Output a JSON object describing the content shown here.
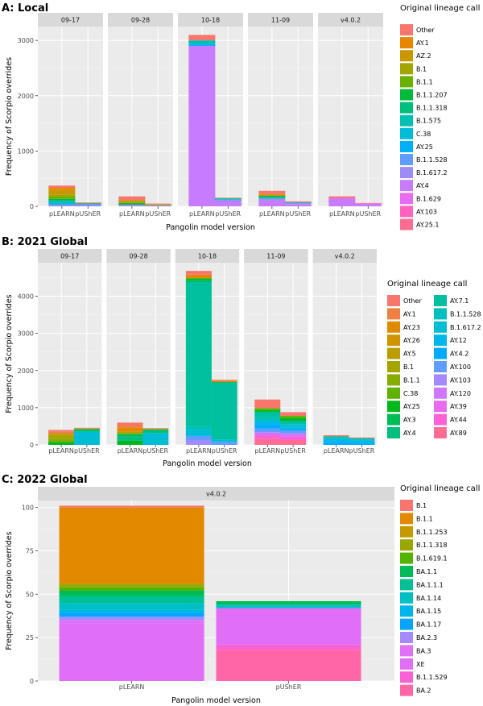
{
  "chart_data": [
    {
      "type": "bar",
      "stacked": true,
      "title": "A: Local",
      "facets": [
        "09-17",
        "09-28",
        "10-18",
        "11-09",
        "v4.0.2"
      ],
      "categories": [
        "pLEARN",
        "pUShER"
      ],
      "xlabel": "Pangolin model version",
      "ylabel": "Frequency of Scorpio overrides",
      "ylim": [
        0,
        3250
      ],
      "yticks": [
        0,
        1000,
        2000,
        3000
      ],
      "legend_title": "Original lineage call",
      "legend": [
        {
          "name": "Other",
          "color": "#F8766D"
        },
        {
          "name": "AY.1",
          "color": "#E58700"
        },
        {
          "name": "AZ.2",
          "color": "#C99800"
        },
        {
          "name": "B.1",
          "color": "#A3A500"
        },
        {
          "name": "B.1.1",
          "color": "#6BB100"
        },
        {
          "name": "B.1.1.207",
          "color": "#00BA38"
        },
        {
          "name": "B.1.1.318",
          "color": "#00BF7D"
        },
        {
          "name": "B.1.575",
          "color": "#00C0AF"
        },
        {
          "name": "C.38",
          "color": "#00BCD8"
        },
        {
          "name": "AY.25",
          "color": "#00B0F6"
        },
        {
          "name": "B.1.1.528",
          "color": "#619CFF"
        },
        {
          "name": "B.1.617.2",
          "color": "#9E8CF6"
        },
        {
          "name": "AY.4",
          "color": "#C77CFF"
        },
        {
          "name": "B.1.629",
          "color": "#E76BF3"
        },
        {
          "name": "AY.103",
          "color": "#FF62BC"
        },
        {
          "name": "AY.25.1",
          "color": "#FF6C91"
        }
      ],
      "bars": [
        {
          "facet": "09-17",
          "category": "pLEARN",
          "segments": [
            [
              "B.1.617.2",
              30
            ],
            [
              "C.38",
              60
            ],
            [
              "B.1.1.318",
              20
            ],
            [
              "B.1.1.207",
              25
            ],
            [
              "B.1.1",
              40
            ],
            [
              "B.1",
              40
            ],
            [
              "AZ.2",
              80
            ],
            [
              "AY.1",
              40
            ],
            [
              "Other",
              40
            ]
          ]
        },
        {
          "facet": "09-17",
          "category": "pUShER",
          "segments": [
            [
              "B.1.617.2",
              35
            ],
            [
              "AY.25",
              15
            ],
            [
              "B.1.1",
              10
            ],
            [
              "Other",
              10
            ]
          ]
        },
        {
          "facet": "09-28",
          "category": "pLEARN",
          "segments": [
            [
              "B.1.617.2",
              30
            ],
            [
              "B.1.1.207",
              30
            ],
            [
              "B.1",
              20
            ],
            [
              "AZ.2",
              30
            ],
            [
              "Other",
              70
            ]
          ]
        },
        {
          "facet": "09-28",
          "category": "pUShER",
          "segments": [
            [
              "B.1.617.2",
              20
            ],
            [
              "B.1.1",
              10
            ],
            [
              "AY.1",
              10
            ],
            [
              "Other",
              10
            ]
          ]
        },
        {
          "facet": "10-18",
          "category": "pLEARN",
          "segments": [
            [
              "AY.4",
              2900
            ],
            [
              "AY.25",
              40
            ],
            [
              "B.1.575",
              60
            ],
            [
              "Other",
              100
            ]
          ]
        },
        {
          "facet": "10-18",
          "category": "pUShER",
          "segments": [
            [
              "AY.4",
              80
            ],
            [
              "B.1.617.2",
              40
            ],
            [
              "B.1.575",
              25
            ],
            [
              "Other",
              10
            ]
          ]
        },
        {
          "facet": "11-09",
          "category": "pLEARN",
          "segments": [
            [
              "AY.4",
              110
            ],
            [
              "B.1.617.2",
              30
            ],
            [
              "B.1.575",
              30
            ],
            [
              "B.1.1.207",
              20
            ],
            [
              "AZ.2",
              30
            ],
            [
              "Other",
              60
            ]
          ]
        },
        {
          "facet": "11-09",
          "category": "pUShER",
          "segments": [
            [
              "AY.4",
              40
            ],
            [
              "B.1.617.2",
              20
            ],
            [
              "B.1.575",
              15
            ],
            [
              "Other",
              15
            ]
          ]
        },
        {
          "facet": "v4.0.2",
          "category": "pLEARN",
          "segments": [
            [
              "AY.4",
              140
            ],
            [
              "AY.103",
              20
            ],
            [
              "Other",
              20
            ]
          ]
        },
        {
          "facet": "v4.0.2",
          "category": "pUShER",
          "segments": [
            [
              "AY.4",
              45
            ],
            [
              "AY.103",
              10
            ],
            [
              "Other",
              5
            ]
          ]
        }
      ]
    },
    {
      "type": "bar",
      "stacked": true,
      "title": "B: 2021 Global",
      "facets": [
        "09-17",
        "09-28",
        "10-18",
        "11-09",
        "v4.0.2"
      ],
      "categories": [
        "pLEARN",
        "pUShER"
      ],
      "xlabel": "Pangolin model version",
      "ylabel": "Frequency of Scorpio overrides",
      "ylim": [
        0,
        4900
      ],
      "yticks": [
        0,
        1000,
        2000,
        3000,
        4000
      ],
      "legend_title": "Original lineage call",
      "legend": [
        {
          "name": "Other",
          "color": "#F8766D"
        },
        {
          "name": "AY.1",
          "color": "#EE8043"
        },
        {
          "name": "AY.23",
          "color": "#E08A00"
        },
        {
          "name": "AY.26",
          "color": "#CF9400"
        },
        {
          "name": "AY.5",
          "color": "#BB9D00"
        },
        {
          "name": "B.1",
          "color": "#A3A500"
        },
        {
          "name": "B.1.1",
          "color": "#87AC00"
        },
        {
          "name": "C.38",
          "color": "#60B200"
        },
        {
          "name": "AY.25",
          "color": "#00B81B"
        },
        {
          "name": "AY.3",
          "color": "#00BC56"
        },
        {
          "name": "AY.4",
          "color": "#00BF7D"
        },
        {
          "name": "AY.7.1",
          "color": "#00C0A0"
        },
        {
          "name": "B.1.1.528",
          "color": "#00C0BE"
        },
        {
          "name": "B.1.617.2",
          "color": "#00BDD6"
        },
        {
          "name": "AY.12",
          "color": "#00B6EB"
        },
        {
          "name": "AY.4.2",
          "color": "#00ABFD"
        },
        {
          "name": "AY.100",
          "color": "#619CFF"
        },
        {
          "name": "AY.103",
          "color": "#A58AFF"
        },
        {
          "name": "AY.120",
          "color": "#CF78FF"
        },
        {
          "name": "AY.39",
          "color": "#EA6AF1"
        },
        {
          "name": "AY.44",
          "color": "#FA62D5"
        },
        {
          "name": "AY.89",
          "color": "#FF6C91"
        }
      ],
      "bars": [
        {
          "facet": "09-17",
          "category": "pLEARN",
          "segments": [
            [
              "AY.25",
              80
            ],
            [
              "B.1.1",
              80
            ],
            [
              "B.1",
              90
            ],
            [
              "AY.5",
              50
            ],
            [
              "AY.1",
              50
            ],
            [
              "Other",
              50
            ]
          ]
        },
        {
          "facet": "09-17",
          "category": "pUShER",
          "segments": [
            [
              "B.1.617.2",
              350
            ],
            [
              "AY.4",
              40
            ],
            [
              "AY.3",
              30
            ],
            [
              "B.1.1",
              20
            ],
            [
              "Other",
              20
            ]
          ]
        },
        {
          "facet": "09-28",
          "category": "pLEARN",
          "segments": [
            [
              "AY.25",
              110
            ],
            [
              "AY.4",
              120
            ],
            [
              "AY.3",
              60
            ],
            [
              "B.1",
              60
            ],
            [
              "AY.23",
              120
            ],
            [
              "AY.1",
              50
            ],
            [
              "Other",
              80
            ]
          ]
        },
        {
          "facet": "09-28",
          "category": "pUShER",
          "segments": [
            [
              "B.1.617.2",
              320
            ],
            [
              "AY.4",
              60
            ],
            [
              "AY.3",
              30
            ],
            [
              "B.1.1",
              20
            ],
            [
              "Other",
              20
            ]
          ]
        },
        {
          "facet": "10-18",
          "category": "pLEARN",
          "segments": [
            [
              "AY.103",
              120
            ],
            [
              "AY.100",
              120
            ],
            [
              "B.1.617.2",
              160
            ],
            [
              "B.1.1.528",
              80
            ],
            [
              "AY.7.1",
              3900
            ],
            [
              "AY.3",
              60
            ],
            [
              "AY.25",
              40
            ],
            [
              "AY.23",
              100
            ],
            [
              "Other",
              100
            ]
          ]
        },
        {
          "facet": "10-18",
          "category": "pUShER",
          "segments": [
            [
              "AY.100",
              80
            ],
            [
              "B.1.617.2",
              70
            ],
            [
              "AY.7.1",
              1510
            ],
            [
              "AY.3",
              30
            ],
            [
              "AY.23",
              30
            ],
            [
              "Other",
              30
            ]
          ]
        },
        {
          "facet": "11-09",
          "category": "pLEARN",
          "segments": [
            [
              "AY.89",
              160
            ],
            [
              "AY.44",
              100
            ],
            [
              "AY.120",
              80
            ],
            [
              "AY.100",
              100
            ],
            [
              "AY.4.2",
              100
            ],
            [
              "AY.12",
              100
            ],
            [
              "B.1.1.528",
              100
            ],
            [
              "AY.7.1",
              150
            ],
            [
              "AY.25",
              50
            ],
            [
              "C.38",
              50
            ],
            [
              "Other",
              230
            ]
          ]
        },
        {
          "facet": "11-09",
          "category": "pUShER",
          "segments": [
            [
              "AY.89",
              130
            ],
            [
              "AY.44",
              100
            ],
            [
              "AY.120",
              80
            ],
            [
              "AY.100",
              80
            ],
            [
              "AY.12",
              80
            ],
            [
              "B.1.617.2",
              80
            ],
            [
              "AY.7.1",
              100
            ],
            [
              "AY.25",
              80
            ],
            [
              "C.38",
              50
            ],
            [
              "Other",
              100
            ]
          ]
        },
        {
          "facet": "v4.0.2",
          "category": "pLEARN",
          "segments": [
            [
              "AY.4.2",
              80
            ],
            [
              "AY.12",
              60
            ],
            [
              "B.1.617.2",
              50
            ],
            [
              "AY.7.1",
              40
            ],
            [
              "Other",
              30
            ]
          ]
        },
        {
          "facet": "v4.0.2",
          "category": "pUShER",
          "segments": [
            [
              "AY.4.2",
              60
            ],
            [
              "AY.12",
              50
            ],
            [
              "B.1.617.2",
              40
            ],
            [
              "AY.7.1",
              30
            ],
            [
              "Other",
              20
            ]
          ]
        }
      ]
    },
    {
      "type": "bar",
      "stacked": true,
      "title": "C: 2022 Global",
      "facets": [
        "v4.0.2"
      ],
      "categories": [
        "pLEARN",
        "pUShER"
      ],
      "xlabel": "Pangolin model version",
      "ylabel": "Frequency of Scorpio overrides",
      "ylim": [
        0,
        104
      ],
      "yticks": [
        0,
        25,
        50,
        75,
        100
      ],
      "legend_title": "Original lineage call",
      "legend": [
        {
          "name": "B.1",
          "color": "#F8766D"
        },
        {
          "name": "B.1.1",
          "color": "#E38900"
        },
        {
          "name": "B.1.1.253",
          "color": "#C49A00"
        },
        {
          "name": "B.1.1.318",
          "color": "#99A800"
        },
        {
          "name": "B.1.619.1",
          "color": "#53B400"
        },
        {
          "name": "BA.1.1",
          "color": "#00BC56"
        },
        {
          "name": "BA.1.1.1",
          "color": "#00C094"
        },
        {
          "name": "BA.1.14",
          "color": "#00BFC4"
        },
        {
          "name": "BA.1.15",
          "color": "#00B6EB"
        },
        {
          "name": "BA.1.17",
          "color": "#06A4FF"
        },
        {
          "name": "BA.2.3",
          "color": "#A58AFF"
        },
        {
          "name": "BA.3",
          "color": "#DF70F8"
        },
        {
          "name": "XE",
          "color": "#E16EF7"
        },
        {
          "name": "B.1.1.529",
          "color": "#FB61D7"
        },
        {
          "name": "BA.2",
          "color": "#FF66A8"
        }
      ],
      "bars": [
        {
          "facet": "v4.0.2",
          "category": "pLEARN",
          "segments": [
            [
              "XE",
              33
            ],
            [
              "BA.3",
              2
            ],
            [
              "BA.2.3",
              2
            ],
            [
              "BA.1.17",
              2
            ],
            [
              "BA.1.15",
              2
            ],
            [
              "BA.1.14",
              4
            ],
            [
              "BA.1.1.1",
              4
            ],
            [
              "BA.1.1",
              3
            ],
            [
              "B.1.619.1",
              2
            ],
            [
              "B.1.1.318",
              2
            ],
            [
              "B.1.1",
              44
            ],
            [
              "B.1",
              1
            ]
          ]
        },
        {
          "facet": "v4.0.2",
          "category": "pUShER",
          "segments": [
            [
              "BA.2",
              18
            ],
            [
              "B.1.1.529",
              3
            ],
            [
              "XE",
              21
            ],
            [
              "BA.1.14",
              2
            ],
            [
              "BA.1.1",
              2
            ]
          ]
        }
      ]
    }
  ]
}
